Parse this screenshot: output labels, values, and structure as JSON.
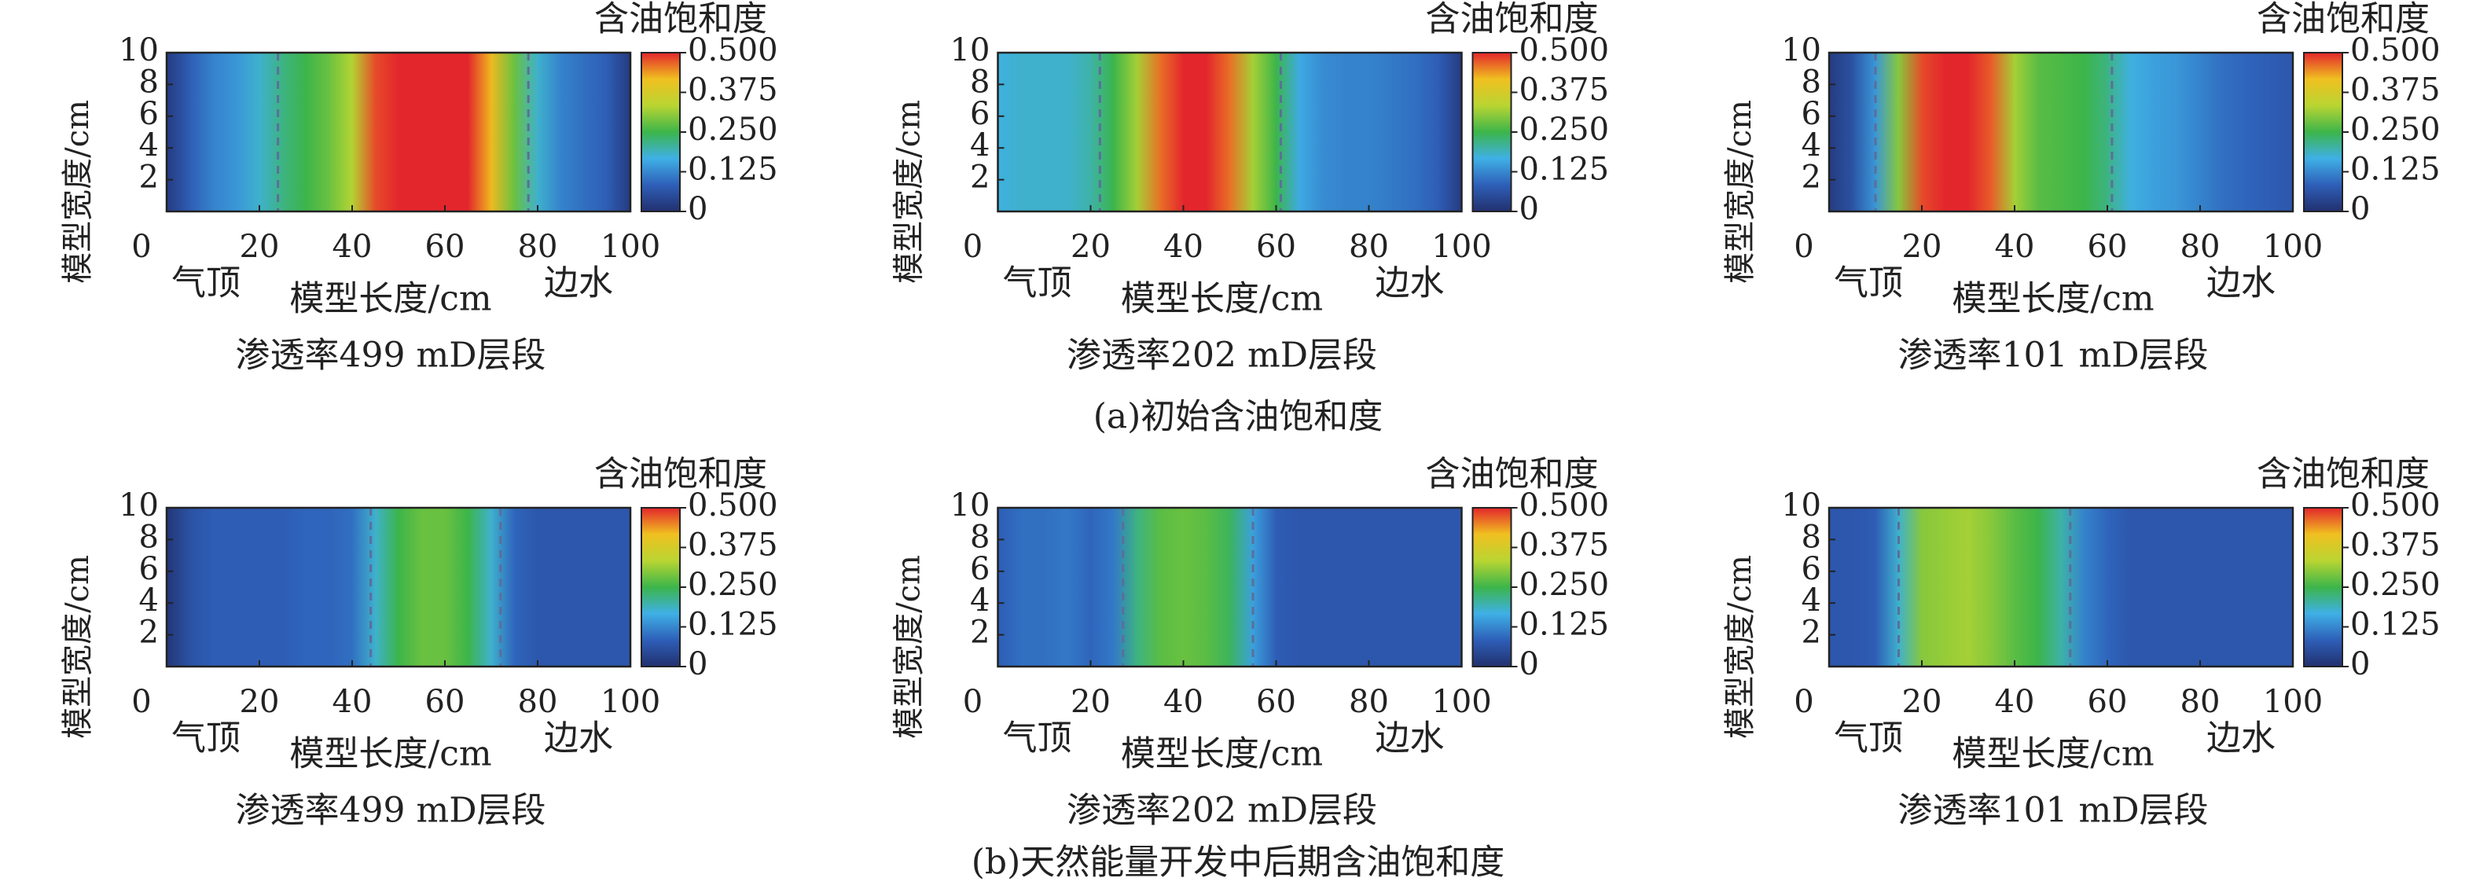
{
  "captions": [
    "(a)初始含油饱和度",
    "(b)天然能量开发中后期含油饱和度"
  ],
  "chart_data": [
    {
      "type": "heatmap",
      "title": "含油饱和度",
      "subtitle": "渗透率499 mD层段",
      "xlabel": "模型长度/cm",
      "ylabel": "模型宽度/cm",
      "annotations": [
        "气顶",
        "边水"
      ],
      "xlim": [
        0,
        100
      ],
      "ylim": [
        0,
        10
      ],
      "xticks": [
        0,
        20,
        40,
        60,
        80,
        100
      ],
      "yticks": [
        2,
        4,
        6,
        8,
        10
      ],
      "zlim": [
        0,
        0.5
      ],
      "zticks": [
        0,
        0.125,
        {
          "value": 0.25,
          "label": "0.250"
        },
        0.375,
        {
          "value": 0.5,
          "label": "0.500"
        }
      ],
      "colormap": [
        "#22306e",
        "#2e5fb8",
        "#3fb0e6",
        "#3cb54a",
        "#b9d532",
        "#f0c020",
        "#e3262c"
      ],
      "x": [
        0,
        5,
        10,
        15,
        20,
        25,
        30,
        35,
        40,
        45,
        50,
        55,
        60,
        65,
        70,
        75,
        80,
        85,
        90,
        95,
        100
      ],
      "values": [
        0.02,
        0.08,
        0.12,
        0.14,
        0.18,
        0.22,
        0.25,
        0.28,
        0.33,
        0.48,
        0.5,
        0.5,
        0.5,
        0.5,
        0.42,
        0.28,
        0.18,
        0.12,
        0.1,
        0.08,
        0.02
      ],
      "dashed_lines": [
        24,
        78
      ]
    },
    {
      "type": "heatmap",
      "title": "含油饱和度",
      "subtitle": "渗透率202 mD层段",
      "xlabel": "模型长度/cm",
      "ylabel": "模型宽度/cm",
      "annotations": [
        "气顶",
        "边水"
      ],
      "xlim": [
        0,
        100
      ],
      "ylim": [
        0,
        10
      ],
      "xticks": [
        0,
        20,
        40,
        60,
        80,
        100
      ],
      "yticks": [
        2,
        4,
        6,
        8,
        10
      ],
      "zlim": [
        0,
        0.5
      ],
      "zticks": [
        0,
        0.125,
        {
          "value": 0.25,
          "label": "0.250"
        },
        0.375,
        {
          "value": 0.5,
          "label": "0.500"
        }
      ],
      "colormap": [
        "#22306e",
        "#2e5fb8",
        "#3fb0e6",
        "#3cb54a",
        "#b9d532",
        "#f0c020",
        "#e3262c"
      ],
      "x": [
        0,
        5,
        10,
        15,
        20,
        25,
        30,
        35,
        40,
        45,
        50,
        55,
        60,
        65,
        70,
        75,
        80,
        85,
        90,
        95,
        100
      ],
      "values": [
        0.17,
        0.18,
        0.18,
        0.18,
        0.2,
        0.25,
        0.32,
        0.46,
        0.5,
        0.5,
        0.46,
        0.32,
        0.25,
        0.16,
        0.13,
        0.12,
        0.12,
        0.11,
        0.1,
        0.08,
        0.02
      ],
      "dashed_lines": [
        22,
        61
      ]
    },
    {
      "type": "heatmap",
      "title": "含油饱和度",
      "subtitle": "渗透率101 mD层段",
      "xlabel": "模型长度/cm",
      "ylabel": "模型宽度/cm",
      "annotations": [
        "气顶",
        "边水"
      ],
      "xlim": [
        0,
        100
      ],
      "ylim": [
        0,
        10
      ],
      "xticks": [
        0,
        20,
        40,
        60,
        80,
        100
      ],
      "yticks": [
        2,
        4,
        6,
        8,
        10
      ],
      "zlim": [
        0,
        0.5
      ],
      "zticks": [
        0,
        0.125,
        {
          "value": 0.25,
          "label": "0.250"
        },
        0.375,
        {
          "value": 0.5,
          "label": "0.500"
        }
      ],
      "colormap": [
        "#22306e",
        "#2e5fb8",
        "#3fb0e6",
        "#3cb54a",
        "#b9d532",
        "#f0c020",
        "#e3262c"
      ],
      "x": [
        0,
        5,
        10,
        15,
        20,
        25,
        30,
        35,
        40,
        45,
        50,
        55,
        60,
        65,
        70,
        75,
        80,
        85,
        90,
        95,
        100
      ],
      "values": [
        0.02,
        0.06,
        0.14,
        0.3,
        0.48,
        0.5,
        0.5,
        0.47,
        0.32,
        0.27,
        0.26,
        0.25,
        0.22,
        0.17,
        0.15,
        0.14,
        0.12,
        0.1,
        0.09,
        0.08,
        0.07
      ],
      "dashed_lines": [
        10,
        61
      ]
    },
    {
      "type": "heatmap",
      "title": "含油饱和度",
      "subtitle": "渗透率499 mD层段",
      "xlabel": "模型长度/cm",
      "ylabel": "模型宽度/cm",
      "annotations": [
        "气顶",
        "边水"
      ],
      "xlim": [
        0,
        100
      ],
      "ylim": [
        0,
        10
      ],
      "xticks": [
        0,
        20,
        40,
        60,
        80,
        100
      ],
      "yticks": [
        2,
        4,
        6,
        8,
        10
      ],
      "zlim": [
        0,
        0.5
      ],
      "zticks": [
        0,
        0.125,
        {
          "value": 0.25,
          "label": "0.250"
        },
        0.375,
        {
          "value": 0.5,
          "label": "0.500"
        }
      ],
      "colormap": [
        "#22306e",
        "#2e5fb8",
        "#3fb0e6",
        "#3cb54a",
        "#b9d532",
        "#f0c020",
        "#e3262c"
      ],
      "x": [
        0,
        5,
        10,
        15,
        20,
        25,
        30,
        35,
        40,
        45,
        50,
        55,
        60,
        65,
        70,
        75,
        80,
        85,
        90,
        95,
        100
      ],
      "values": [
        0.01,
        0.06,
        0.08,
        0.08,
        0.08,
        0.08,
        0.09,
        0.09,
        0.1,
        0.18,
        0.25,
        0.28,
        0.28,
        0.25,
        0.18,
        0.09,
        0.07,
        0.07,
        0.07,
        0.07,
        0.07
      ],
      "dashed_lines": [
        44,
        72
      ]
    },
    {
      "type": "heatmap",
      "title": "含油饱和度",
      "subtitle": "渗透率202 mD层段",
      "xlabel": "模型长度/cm",
      "ylabel": "模型宽度/cm",
      "annotations": [
        "气顶",
        "边水"
      ],
      "xlim": [
        0,
        100
      ],
      "ylim": [
        0,
        10
      ],
      "xticks": [
        0,
        20,
        40,
        60,
        80,
        100
      ],
      "yticks": [
        2,
        4,
        6,
        8,
        10
      ],
      "zlim": [
        0,
        0.5
      ],
      "zticks": [
        0,
        0.125,
        {
          "value": 0.25,
          "label": "0.250"
        },
        0.375,
        {
          "value": 0.5,
          "label": "0.500"
        }
      ],
      "colormap": [
        "#22306e",
        "#2e5fb8",
        "#3fb0e6",
        "#3cb54a",
        "#b9d532",
        "#f0c020",
        "#e3262c"
      ],
      "x": [
        0,
        5,
        10,
        15,
        20,
        25,
        30,
        35,
        40,
        45,
        50,
        55,
        60,
        65,
        70,
        75,
        80,
        85,
        90,
        95,
        100
      ],
      "values": [
        0.08,
        0.1,
        0.1,
        0.11,
        0.09,
        0.11,
        0.22,
        0.27,
        0.28,
        0.27,
        0.24,
        0.15,
        0.08,
        0.07,
        0.07,
        0.07,
        0.07,
        0.07,
        0.07,
        0.07,
        0.07
      ],
      "dashed_lines": [
        27,
        55
      ]
    },
    {
      "type": "heatmap",
      "title": "含油饱和度",
      "subtitle": "渗透率101 mD层段",
      "xlabel": "模型长度/cm",
      "ylabel": "模型宽度/cm",
      "annotations": [
        "气顶",
        "边水"
      ],
      "xlim": [
        0,
        100
      ],
      "ylim": [
        0,
        10
      ],
      "xticks": [
        0,
        20,
        40,
        60,
        80,
        100
      ],
      "yticks": [
        2,
        4,
        6,
        8,
        10
      ],
      "zlim": [
        0,
        0.5
      ],
      "zticks": [
        0,
        0.125,
        {
          "value": 0.25,
          "label": "0.250"
        },
        0.375,
        {
          "value": 0.5,
          "label": "0.500"
        }
      ],
      "colormap": [
        "#22306e",
        "#2e5fb8",
        "#3fb0e6",
        "#3cb54a",
        "#b9d532",
        "#f0c020",
        "#e3262c"
      ],
      "x": [
        0,
        5,
        10,
        15,
        20,
        25,
        30,
        35,
        40,
        45,
        50,
        55,
        60,
        65,
        70,
        75,
        80,
        85,
        90,
        95,
        100
      ],
      "values": [
        0.07,
        0.07,
        0.08,
        0.18,
        0.3,
        0.31,
        0.32,
        0.3,
        0.27,
        0.25,
        0.2,
        0.12,
        0.09,
        0.07,
        0.07,
        0.07,
        0.07,
        0.07,
        0.07,
        0.07,
        0.07
      ],
      "dashed_lines": [
        15,
        52
      ]
    }
  ]
}
